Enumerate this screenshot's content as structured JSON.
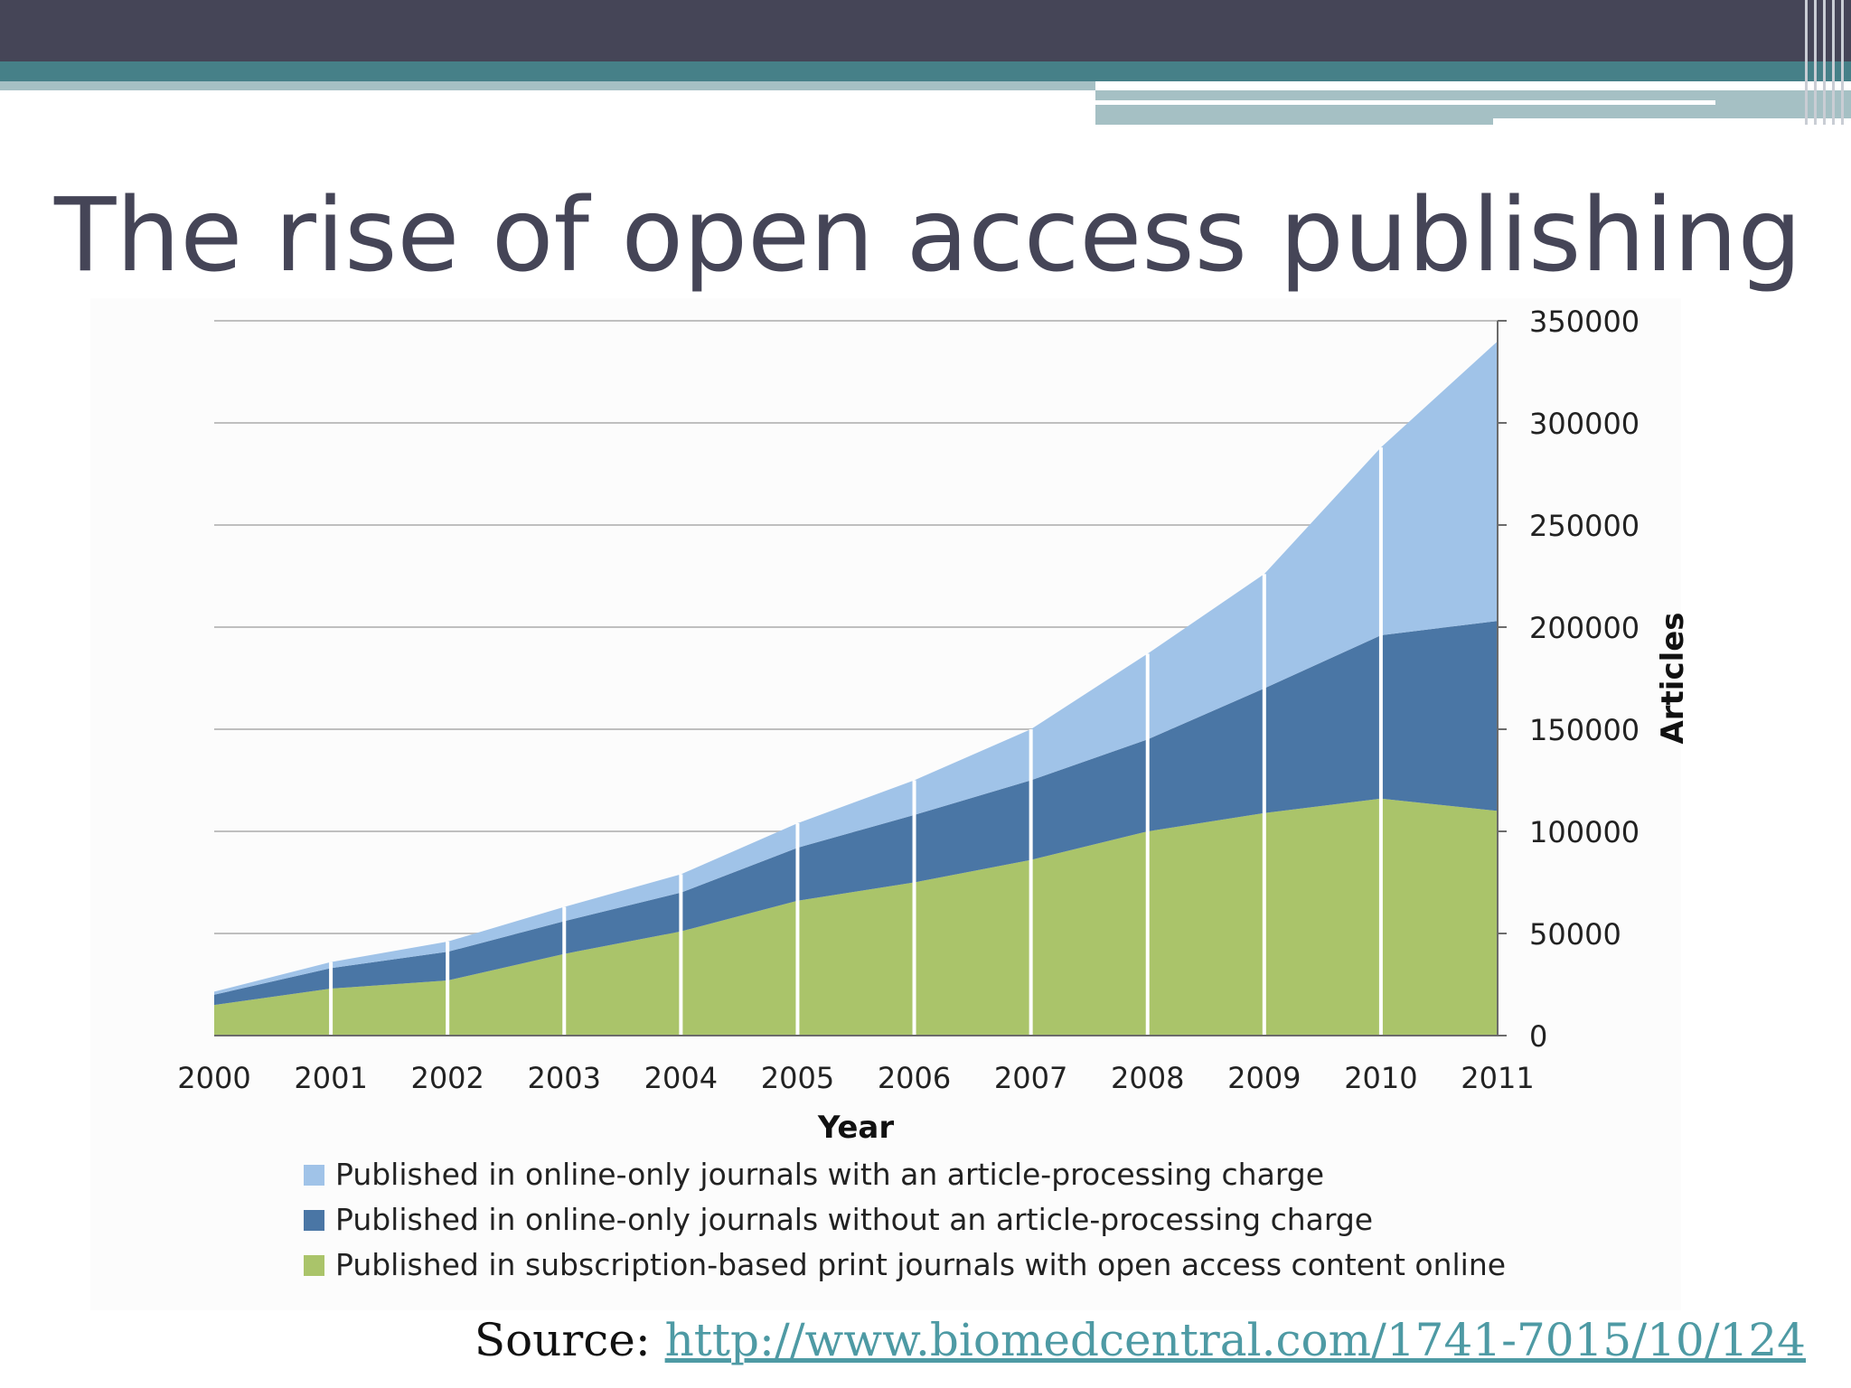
{
  "slide": {
    "title": "The rise of open access publishing",
    "source_label": "Source: ",
    "source_link": "http://www.biomedcentral.com/1741-7015/10/124"
  },
  "colors": {
    "header": "#454557",
    "teal": "#468088",
    "light_teal": "#a5c0c4",
    "series_apc": "#a0c3e8",
    "series_no_apc": "#4a76a5",
    "series_print": "#aac46a",
    "grid": "#bfbfbf"
  },
  "chart_data": {
    "type": "area",
    "stacked": true,
    "x": [
      2000,
      2001,
      2002,
      2003,
      2004,
      2005,
      2006,
      2007,
      2008,
      2009,
      2010,
      2011
    ],
    "series": [
      {
        "name": "Published in subscription-based print journals with open access content online",
        "values": [
          15000,
          23000,
          27000,
          40000,
          51000,
          66000,
          75000,
          86000,
          100000,
          109000,
          116000,
          110000
        ]
      },
      {
        "name": "Published in online-only journals without an article-processing charge",
        "values": [
          5000,
          10000,
          14000,
          16000,
          19000,
          26000,
          33000,
          39000,
          45000,
          61000,
          80000,
          93000
        ]
      },
      {
        "name": "Published in online-only journals with an article-processing charge",
        "values": [
          1500,
          3000,
          5000,
          7000,
          9000,
          12000,
          17000,
          25000,
          42000,
          56000,
          92000,
          137000
        ]
      }
    ],
    "xlabel": "Year",
    "ylabel": "Articles",
    "ylim": [
      0,
      350000
    ],
    "yticks": [
      0,
      50000,
      100000,
      150000,
      200000,
      250000,
      300000,
      350000
    ],
    "yaxis_side": "right",
    "grid": true,
    "legend_position": "bottom",
    "legend_order": [
      "Published in online-only journals with an article-processing charge",
      "Published in online-only journals without an article-processing charge",
      "Published in subscription-based print journals with open access content online"
    ]
  }
}
